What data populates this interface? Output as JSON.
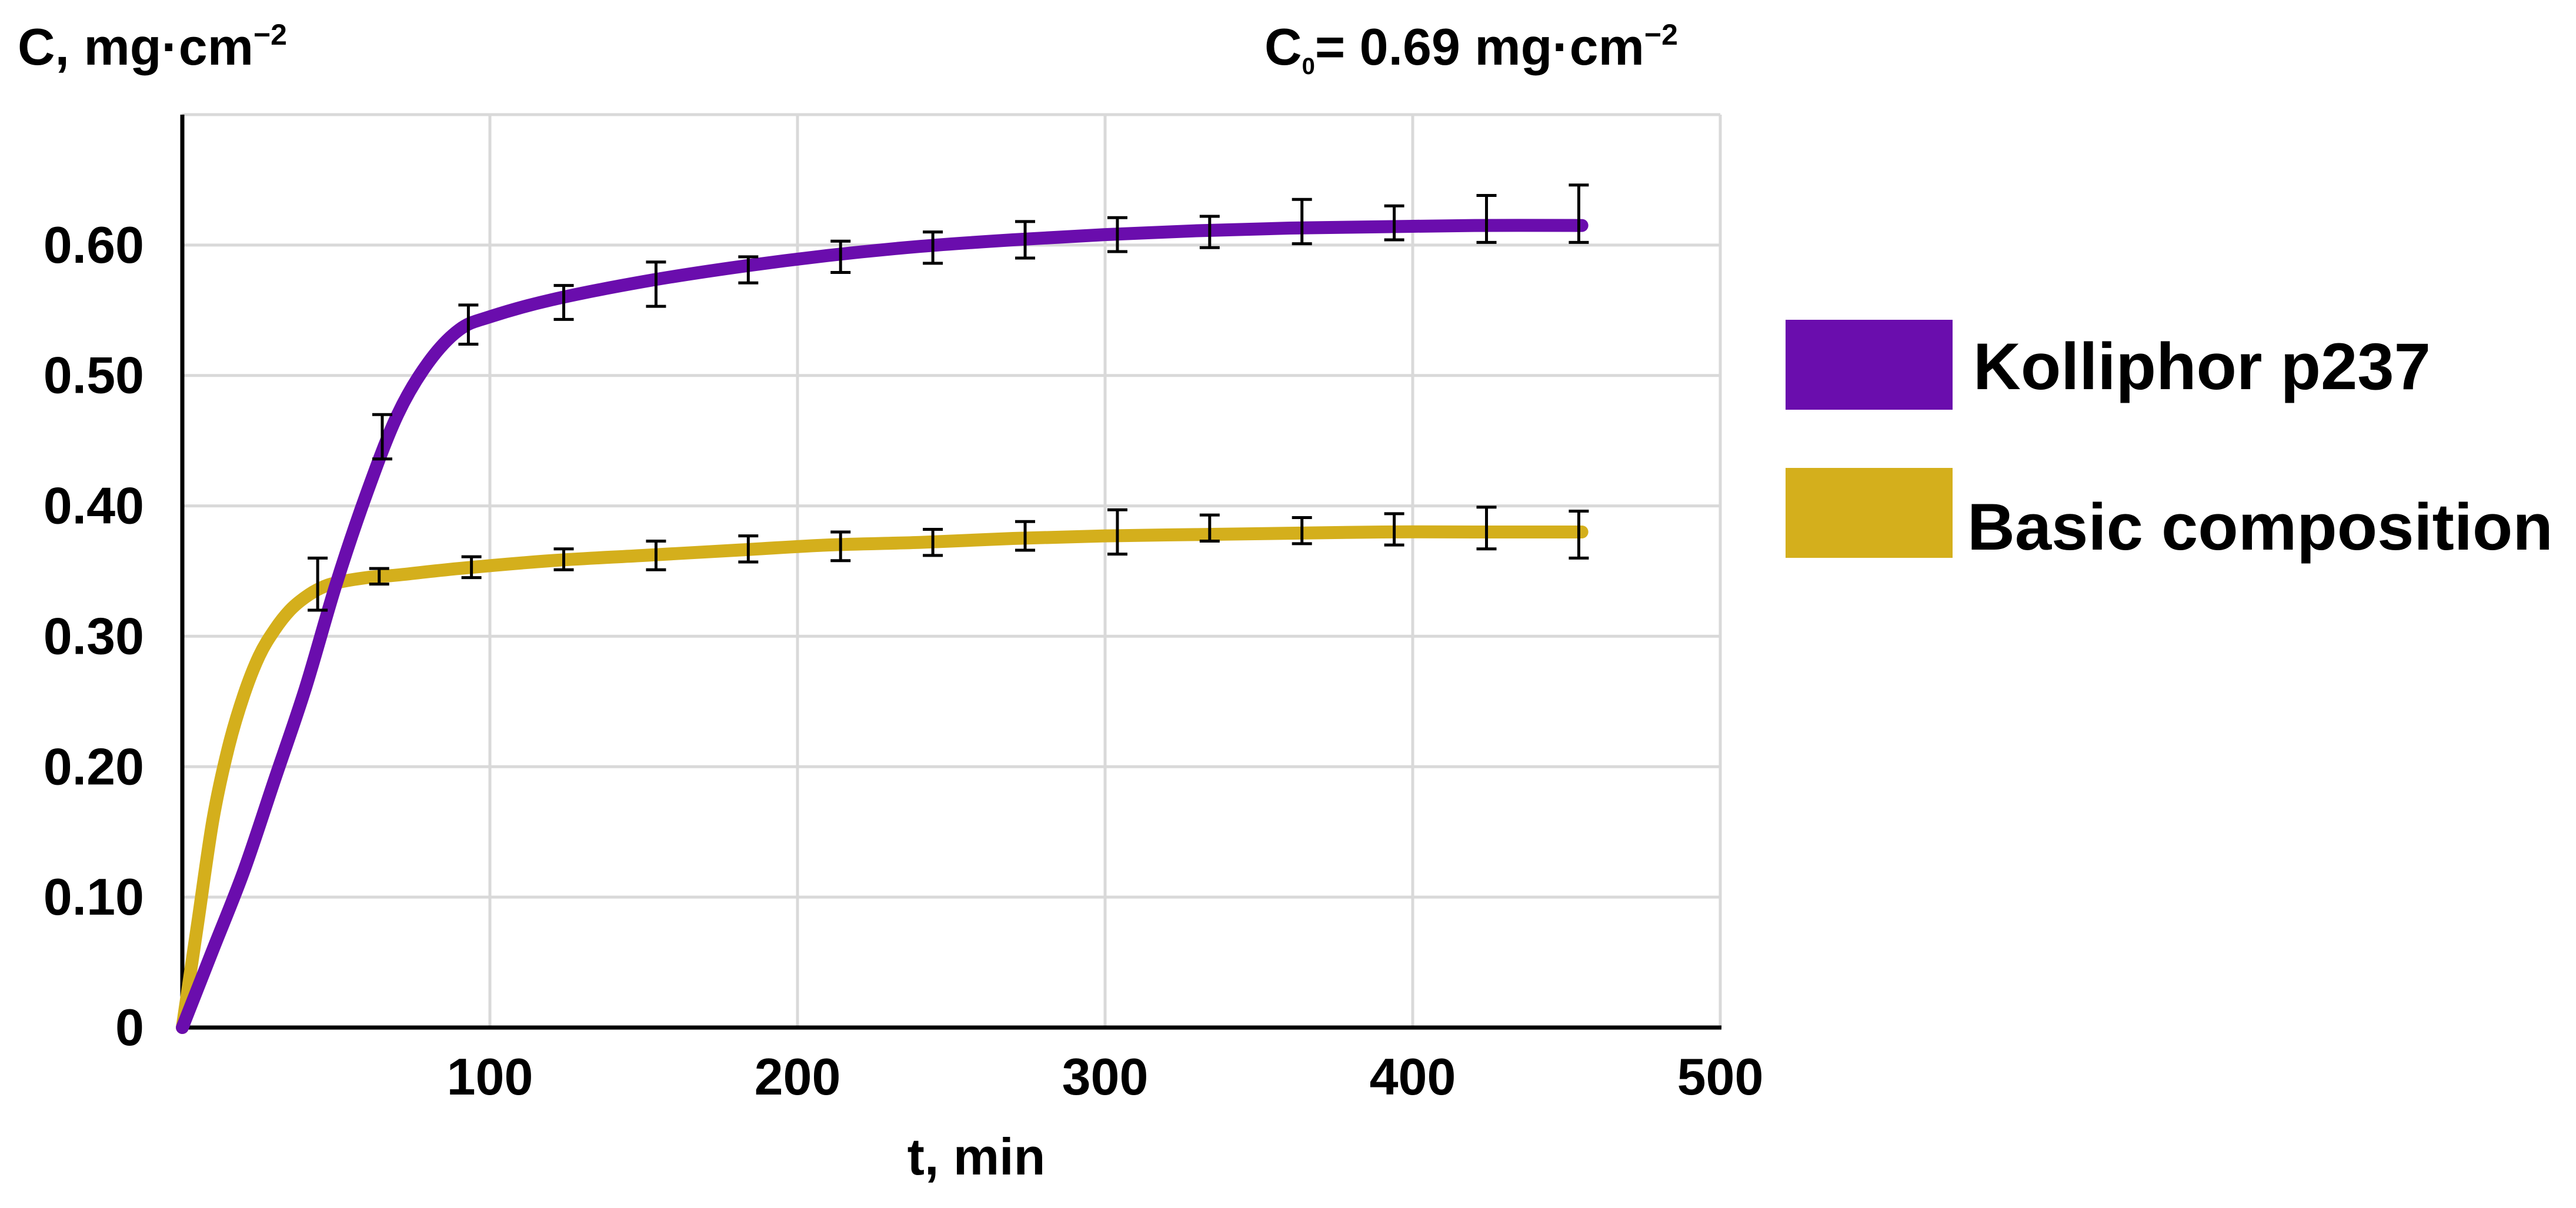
{
  "chart_data": {
    "type": "line",
    "title": "",
    "ylabel_parts": {
      "main": "C, mg·cm",
      "sup": "−2"
    },
    "annotation_parts": {
      "pre": "C",
      "sub": "0",
      "mid": "= 0.69 mg·cm",
      "sup": "−2"
    },
    "xlabel": "t, min",
    "xlim": [
      0,
      500
    ],
    "ylim": [
      0,
      0.7
    ],
    "xticks": [
      100,
      200,
      300,
      400,
      500
    ],
    "xtick_labels": [
      "100",
      "200",
      "300",
      "400",
      "500"
    ],
    "yticks": [
      0,
      0.1,
      0.2,
      0.3,
      0.4,
      0.5,
      0.6
    ],
    "ytick_labels": [
      "0",
      "0.10",
      "0.20",
      "0.30",
      "0.40",
      "0.50",
      "0.60"
    ],
    "xgrid": [
      100,
      200,
      300,
      400,
      500
    ],
    "ygrid": [
      0.1,
      0.2,
      0.3,
      0.4,
      0.5,
      0.6,
      0.7
    ],
    "series": [
      {
        "name": "Kolliphor p237",
        "color": "#6a0dad",
        "curve": {
          "x": [
            0,
            10,
            20,
            30,
            40,
            50,
            60,
            70,
            80,
            90,
            100,
            120,
            150,
            180,
            210,
            240,
            270,
            300,
            330,
            360,
            390,
            420,
            455
          ],
          "y": [
            0,
            0.06,
            0.12,
            0.19,
            0.26,
            0.34,
            0.41,
            0.47,
            0.51,
            0.535,
            0.545,
            0.558,
            0.572,
            0.583,
            0.592,
            0.599,
            0.604,
            0.608,
            0.611,
            0.613,
            0.614,
            0.615,
            0.615
          ]
        },
        "points": {
          "x": [
            65,
            93,
            124,
            154,
            184,
            214,
            244,
            274,
            304,
            334,
            364,
            394,
            424,
            454
          ],
          "y": [
            0.453,
            0.539,
            0.556,
            0.57,
            0.581,
            0.591,
            0.598,
            0.604,
            0.608,
            0.61,
            0.618,
            0.617,
            0.62,
            0.624
          ],
          "err": [
            0.017,
            0.015,
            0.013,
            0.017,
            0.01,
            0.012,
            0.012,
            0.014,
            0.013,
            0.012,
            0.017,
            0.013,
            0.018,
            0.022
          ]
        }
      },
      {
        "name": "Basic composition",
        "color": "#d4af1c",
        "curve": {
          "x": [
            0,
            5,
            10,
            15,
            20,
            25,
            30,
            35,
            40,
            45,
            50,
            60,
            70,
            90,
            120,
            150,
            180,
            210,
            240,
            270,
            300,
            330,
            360,
            390,
            420,
            455
          ],
          "y": [
            0,
            0.08,
            0.16,
            0.215,
            0.255,
            0.285,
            0.305,
            0.32,
            0.33,
            0.337,
            0.341,
            0.345,
            0.347,
            0.352,
            0.358,
            0.362,
            0.366,
            0.37,
            0.372,
            0.375,
            0.377,
            0.378,
            0.379,
            0.38,
            0.38,
            0.38
          ]
        },
        "points": {
          "x": [
            44,
            64,
            94,
            124,
            154,
            184,
            214,
            244,
            274,
            304,
            334,
            364,
            394,
            424,
            454
          ],
          "y": [
            0.34,
            0.346,
            0.353,
            0.359,
            0.362,
            0.367,
            0.369,
            0.372,
            0.377,
            0.38,
            0.383,
            0.381,
            0.382,
            0.383,
            0.378
          ],
          "err": [
            0.02,
            0.006,
            0.008,
            0.008,
            0.011,
            0.01,
            0.011,
            0.01,
            0.011,
            0.017,
            0.01,
            0.01,
            0.012,
            0.016,
            0.018
          ]
        }
      }
    ],
    "legend": {
      "placement": "right",
      "entries": [
        {
          "label": "Kolliphor p237",
          "color": "#6a0dad"
        },
        {
          "label": "Basic composition",
          "color": "#d4af1c"
        }
      ]
    }
  }
}
